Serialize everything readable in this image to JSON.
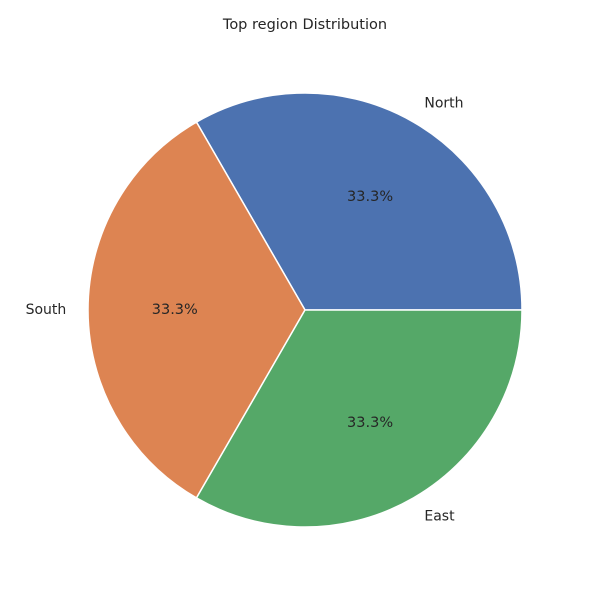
{
  "chart_data": {
    "type": "pie",
    "title": "Top region Distribution",
    "categories": [
      "North",
      "South",
      "East"
    ],
    "values": [
      1,
      1,
      1
    ],
    "percent_labels": [
      "33.3%",
      "33.3%",
      "33.3%"
    ],
    "colors": [
      "#4c72b0",
      "#dd8452",
      "#55a868"
    ],
    "start_angle_deg": 0,
    "direction": "counterclockwise",
    "legend": "none"
  }
}
